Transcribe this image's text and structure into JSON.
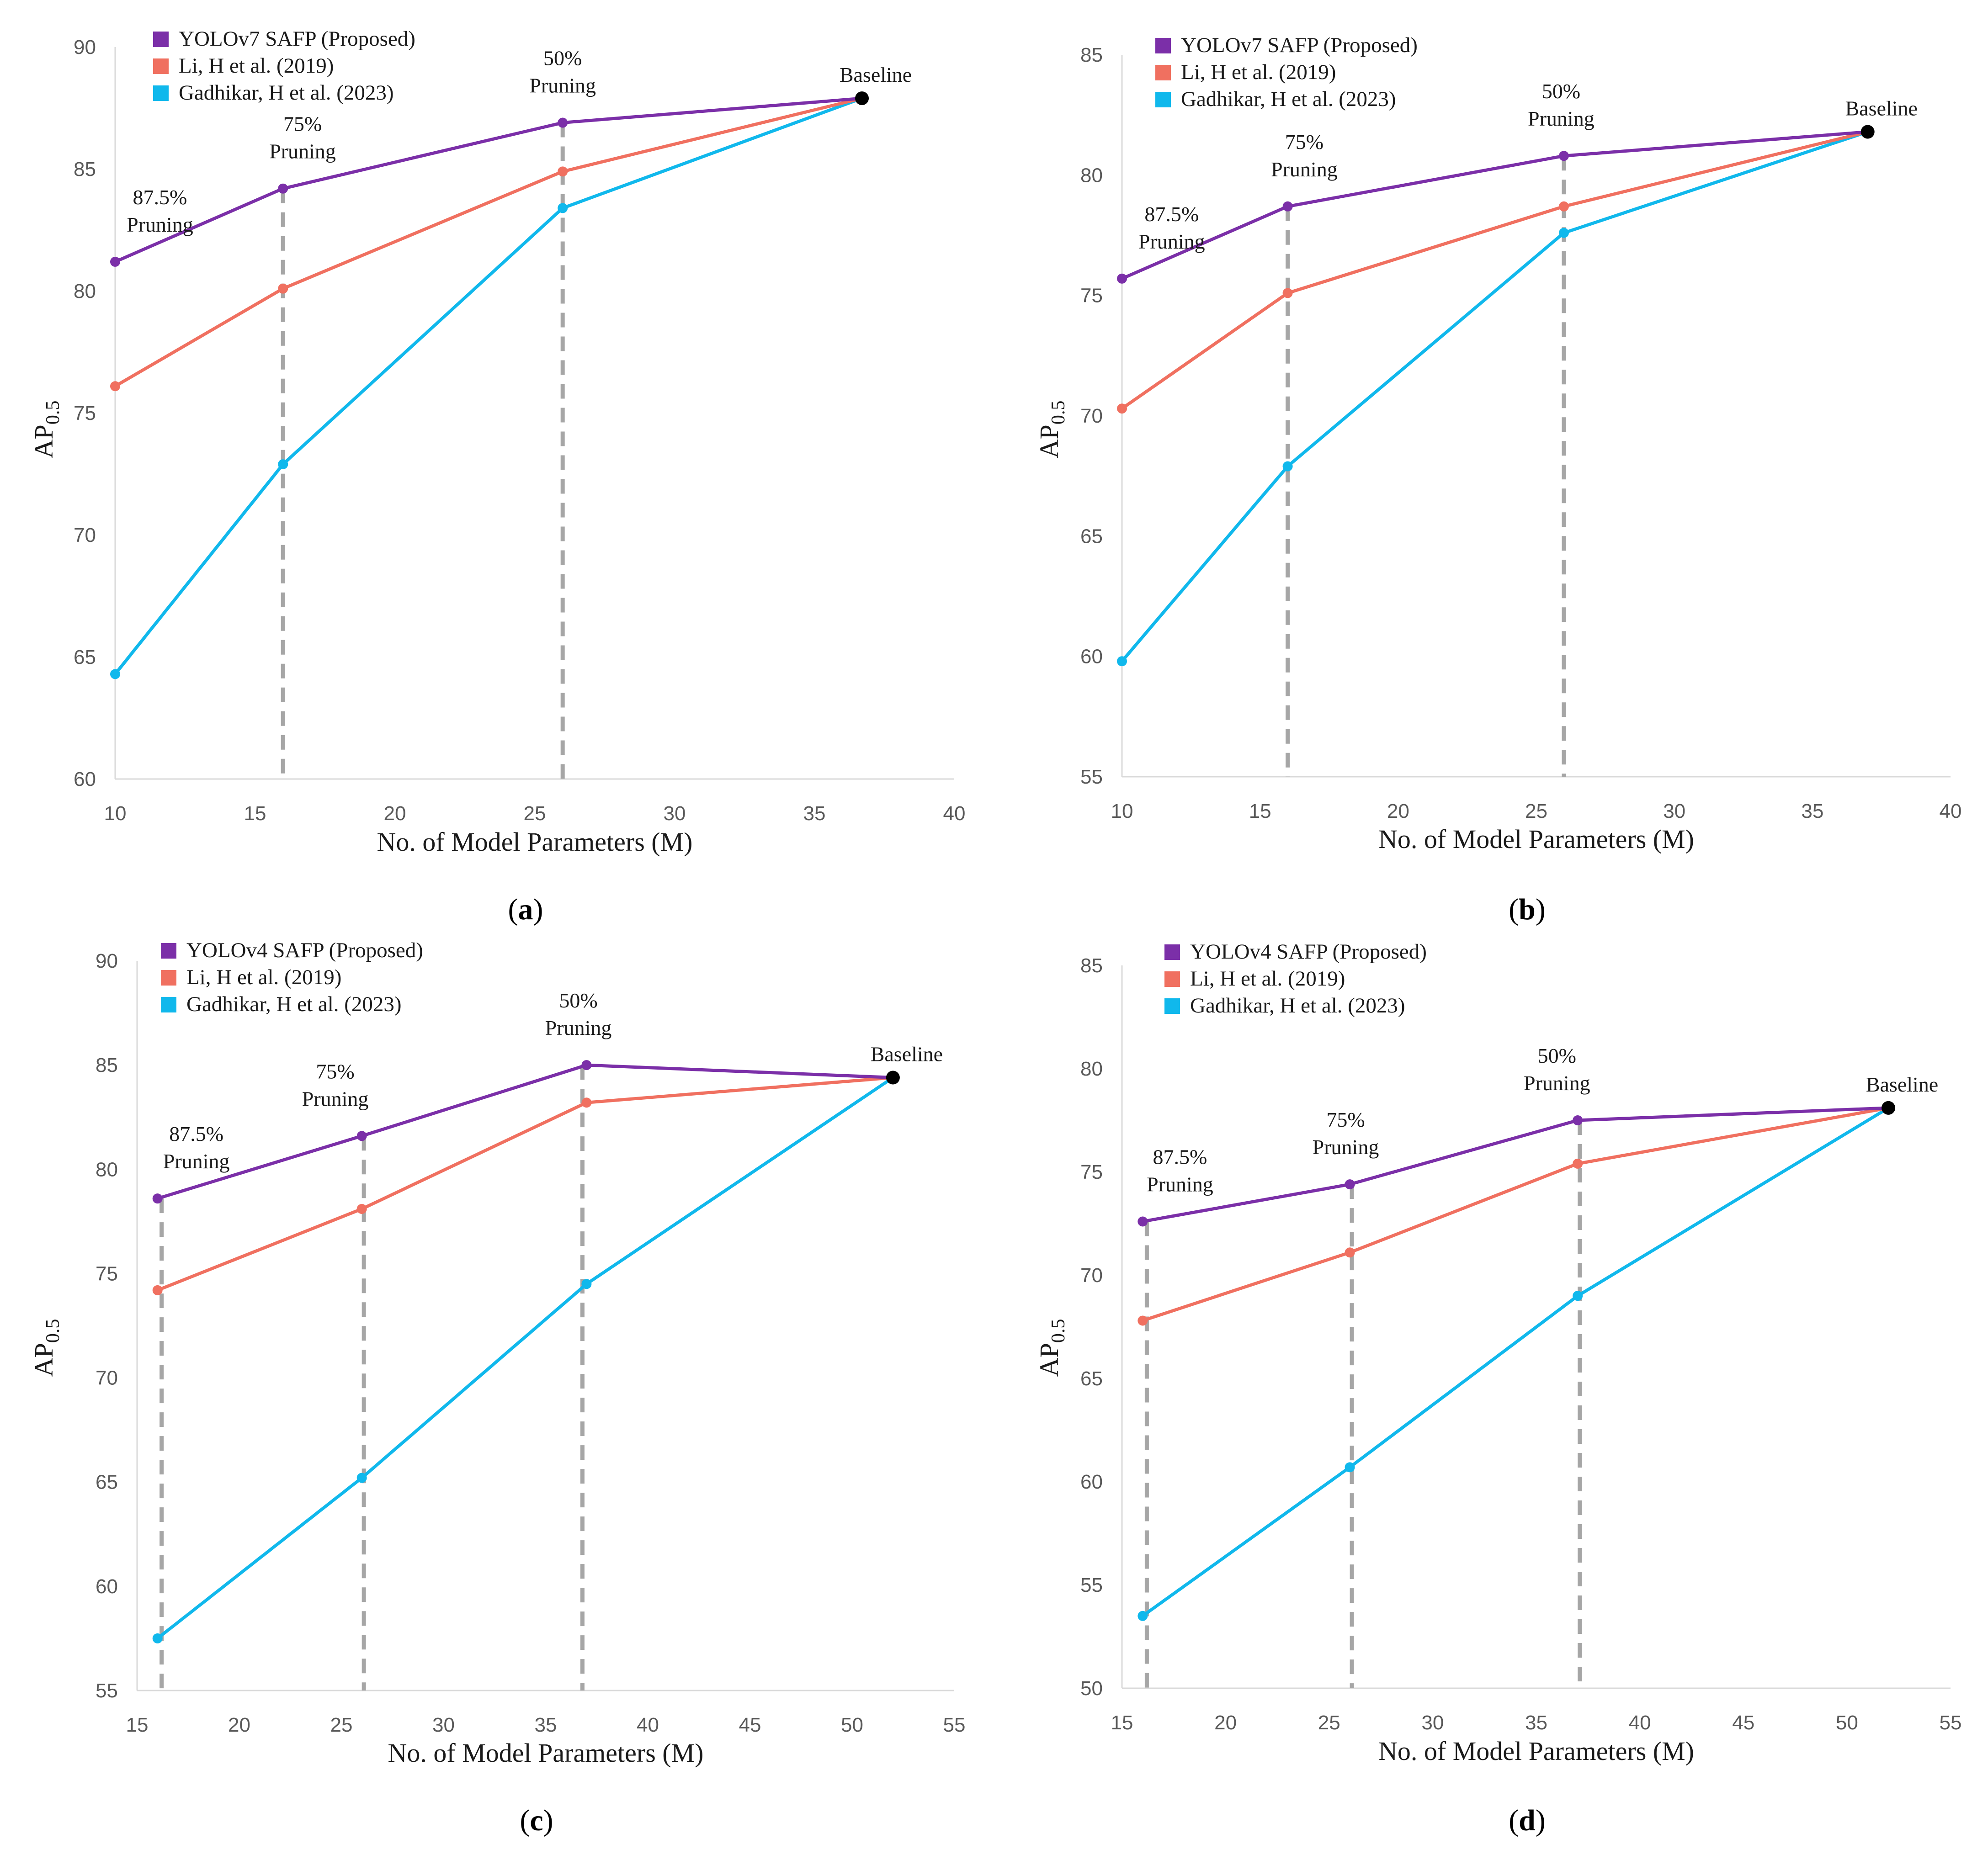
{
  "chart_data": [
    {
      "type": "line",
      "panel": "a",
      "xlabel": "No. of Model Parameters (M)",
      "ylabel": "AP",
      "ylabel_subscript": "0.5",
      "xlim": [
        10,
        40
      ],
      "ylim": [
        60,
        90
      ],
      "xticks": [
        10,
        15,
        20,
        25,
        30,
        35,
        40
      ],
      "yticks": [
        60,
        65,
        70,
        75,
        80,
        85,
        90
      ],
      "grid": false,
      "legend_position": "top-left",
      "series": [
        {
          "name": "YOLOv7 SAFP (Proposed)",
          "color": "#7B2FA8",
          "x": [
            10,
            16,
            26,
            36.7
          ],
          "y": [
            81.2,
            84.2,
            86.9,
            87.9
          ]
        },
        {
          "name": "Li, H et al. (2019)",
          "color": "#F07060",
          "x": [
            10,
            16,
            26,
            36.7
          ],
          "y": [
            76.1,
            80.1,
            84.9,
            87.9
          ]
        },
        {
          "name": "Gadhikar, H et al. (2023)",
          "color": "#10B8EC",
          "x": [
            10,
            16,
            26,
            36.7
          ],
          "y": [
            64.3,
            72.9,
            83.4,
            87.9
          ]
        }
      ],
      "baseline": {
        "label": "Baseline",
        "x": 36.7,
        "y": 87.9,
        "color": "#000000"
      },
      "pruning_lines": [
        16,
        26
      ],
      "annotations": [
        {
          "line1": "87.5%",
          "line2": "Pruning",
          "x": 11.6,
          "y": 81.2
        },
        {
          "line1": "75%",
          "line2": "Pruning",
          "x": 16.7,
          "y": 84.2
        },
        {
          "line1": "50%",
          "line2": "Pruning",
          "x": 26.0,
          "y": 86.9
        }
      ]
    },
    {
      "type": "line",
      "panel": "b",
      "xlabel": "No. of Model Parameters (M)",
      "ylabel": "AP",
      "ylabel_subscript": "0.5",
      "xlim": [
        10,
        40
      ],
      "ylim": [
        55,
        85
      ],
      "xticks": [
        10,
        15,
        20,
        25,
        30,
        35,
        40
      ],
      "yticks": [
        55,
        60,
        65,
        70,
        75,
        80,
        85
      ],
      "grid": false,
      "legend_position": "top-left",
      "series": [
        {
          "name": "YOLOv7 SAFP (Proposed)",
          "color": "#7B2FA8",
          "x": [
            10,
            16,
            26,
            37
          ],
          "y": [
            75.7,
            78.7,
            80.8,
            81.8
          ]
        },
        {
          "name": "Li, H et al. (2019)",
          "color": "#F07060",
          "x": [
            10,
            16,
            26,
            37
          ],
          "y": [
            70.3,
            75.1,
            78.7,
            81.8
          ]
        },
        {
          "name": "Gadhikar, H et al. (2023)",
          "color": "#10B8EC",
          "x": [
            10,
            16,
            26,
            37
          ],
          "y": [
            59.8,
            67.9,
            77.6,
            81.8
          ]
        }
      ],
      "baseline": {
        "label": "Baseline",
        "x": 37,
        "y": 81.8,
        "color": "#000000"
      },
      "pruning_lines": [
        16,
        26
      ],
      "annotations": [
        {
          "line1": "87.5%",
          "line2": "Pruning",
          "x": 11.8,
          "y": 75.7
        },
        {
          "line1": "75%",
          "line2": "Pruning",
          "x": 16.6,
          "y": 78.7
        },
        {
          "line1": "50%",
          "line2": "Pruning",
          "x": 25.9,
          "y": 80.8
        }
      ]
    },
    {
      "type": "line",
      "panel": "c",
      "xlabel": "No. of Model Parameters (M)",
      "ylabel": "AP",
      "ylabel_subscript": "0.5",
      "xlim": [
        15,
        55
      ],
      "ylim": [
        55,
        90
      ],
      "xticks": [
        15,
        20,
        25,
        30,
        35,
        40,
        45,
        50,
        55
      ],
      "yticks": [
        55,
        60,
        65,
        70,
        75,
        80,
        85,
        90
      ],
      "grid": false,
      "legend_position": "top-left",
      "series": [
        {
          "name": "YOLOv4 SAFP (Proposed)",
          "color": "#7B2FA8",
          "x": [
            16,
            26,
            37,
            52
          ],
          "y": [
            78.6,
            81.6,
            85.0,
            84.4
          ]
        },
        {
          "name": "Li, H et al. (2019)",
          "color": "#F07060",
          "x": [
            16,
            26,
            37,
            52
          ],
          "y": [
            74.2,
            78.1,
            83.2,
            84.4
          ]
        },
        {
          "name": "Gadhikar, H et al. (2023)",
          "color": "#10B8EC",
          "x": [
            16,
            26,
            37,
            52
          ],
          "y": [
            57.5,
            65.2,
            74.5,
            84.4
          ]
        }
      ],
      "baseline": {
        "label": "Baseline",
        "x": 52,
        "y": 84.4,
        "color": "#000000"
      },
      "pruning_lines": [
        16.2,
        26.1,
        36.8
      ],
      "annotations": [
        {
          "line1": "87.5%",
          "line2": "Pruning",
          "x": 17.9,
          "y": 78.6
        },
        {
          "line1": "75%",
          "line2": "Pruning",
          "x": 24.7,
          "y": 81.6
        },
        {
          "line1": "50%",
          "line2": "Pruning",
          "x": 36.6,
          "y": 85.0
        }
      ]
    },
    {
      "type": "line",
      "panel": "d",
      "xlabel": "No. of Model Parameters (M)",
      "ylabel": "AP",
      "ylabel_subscript": "0.5",
      "xlim": [
        15,
        55
      ],
      "ylim": [
        50,
        85
      ],
      "xticks": [
        15,
        20,
        25,
        30,
        35,
        40,
        45,
        50,
        55
      ],
      "yticks": [
        50,
        55,
        60,
        65,
        70,
        75,
        80,
        85
      ],
      "grid": false,
      "legend_position": "top-left",
      "series": [
        {
          "name": "YOLOv4 SAFP (Proposed)",
          "color": "#7B2FA8",
          "x": [
            16,
            26,
            37,
            52
          ],
          "y": [
            72.6,
            74.4,
            77.5,
            78.1
          ]
        },
        {
          "name": "Li, H et al. (2019)",
          "color": "#F07060",
          "x": [
            16,
            26,
            37,
            52
          ],
          "y": [
            67.8,
            71.1,
            75.4,
            78.1
          ]
        },
        {
          "name": "Gadhikar, H et al. (2023)",
          "color": "#10B8EC",
          "x": [
            16,
            26,
            37,
            52
          ],
          "y": [
            53.5,
            60.7,
            69.0,
            78.1
          ]
        }
      ],
      "baseline": {
        "label": "Baseline",
        "x": 52,
        "y": 78.1,
        "color": "#000000"
      },
      "pruning_lines": [
        16.2,
        26.1,
        37.1
      ],
      "annotations": [
        {
          "line1": "87.5%",
          "line2": "Pruning",
          "x": 17.8,
          "y": 72.6
        },
        {
          "line1": "75%",
          "line2": "Pruning",
          "x": 25.8,
          "y": 74.4
        },
        {
          "line1": "50%",
          "line2": "Pruning",
          "x": 36.0,
          "y": 77.5
        }
      ]
    }
  ],
  "panel_labels": [
    "(a)",
    "(b)",
    "(c)",
    "(d)"
  ],
  "pruning_line_color": "#A6A6A6",
  "axis_color": "#D9D9D9"
}
